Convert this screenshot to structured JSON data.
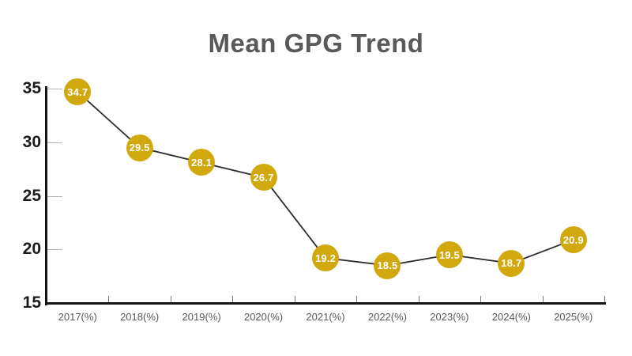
{
  "title": "Mean GPG Trend",
  "colors": {
    "marker": "#d1a90e",
    "marker_label": "#ffffff",
    "line": "#2d2d2d",
    "axis": "#141414",
    "title": "#595959",
    "x_label": "#595959",
    "y_label": "#1a1a1a",
    "background": "#ffffff"
  },
  "chart_data": {
    "type": "line",
    "title": "Mean GPG Trend",
    "categories": [
      "2017(%)",
      "2018(%)",
      "2019(%)",
      "2020(%)",
      "2021(%)",
      "2022(%)",
      "2023(%)",
      "2024(%)",
      "2025(%)"
    ],
    "values": [
      34.7,
      29.5,
      28.1,
      26.7,
      19.2,
      18.5,
      19.5,
      18.7,
      20.9
    ],
    "series_name": "Mean GPG",
    "xlabel": "",
    "ylabel": "",
    "ylim": [
      15,
      35
    ],
    "yticks": [
      15,
      20,
      25,
      30,
      35
    ],
    "grid": false,
    "legend": false,
    "data_labels": true,
    "marker_shape": "circle"
  }
}
